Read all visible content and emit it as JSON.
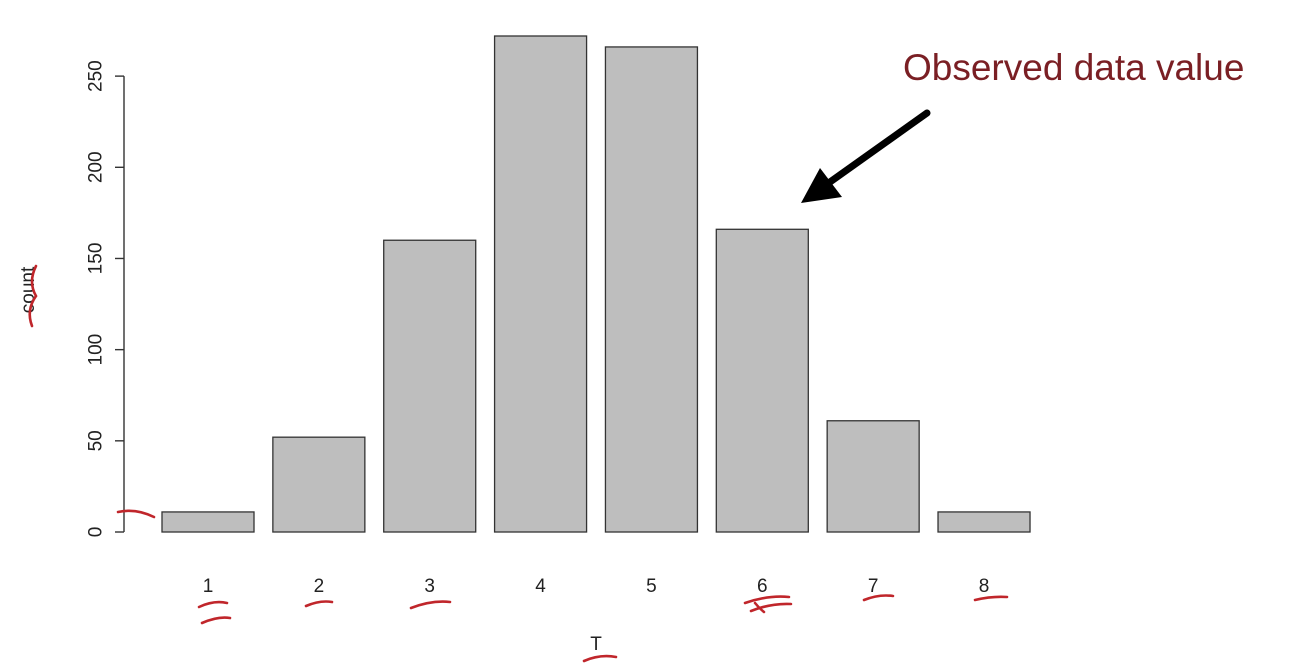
{
  "chart_data": {
    "type": "bar",
    "title": "",
    "xlabel": "T",
    "ylabel": "count",
    "categories": [
      "1",
      "2",
      "3",
      "4",
      "5",
      "6",
      "7",
      "8"
    ],
    "values": [
      11,
      52,
      160,
      272,
      266,
      166,
      61,
      11
    ],
    "ylim": [
      0,
      272
    ],
    "yticks": [
      0,
      50,
      100,
      150,
      200,
      250
    ],
    "bar_color": "#bebebe",
    "bar_edge_color": "#333333",
    "grid": false,
    "legend": "none",
    "annotation": {
      "text": "Observed data value",
      "points_to_category": "6",
      "color": "#7a1f24"
    },
    "handwritten_ink_color": "#c0262b"
  }
}
